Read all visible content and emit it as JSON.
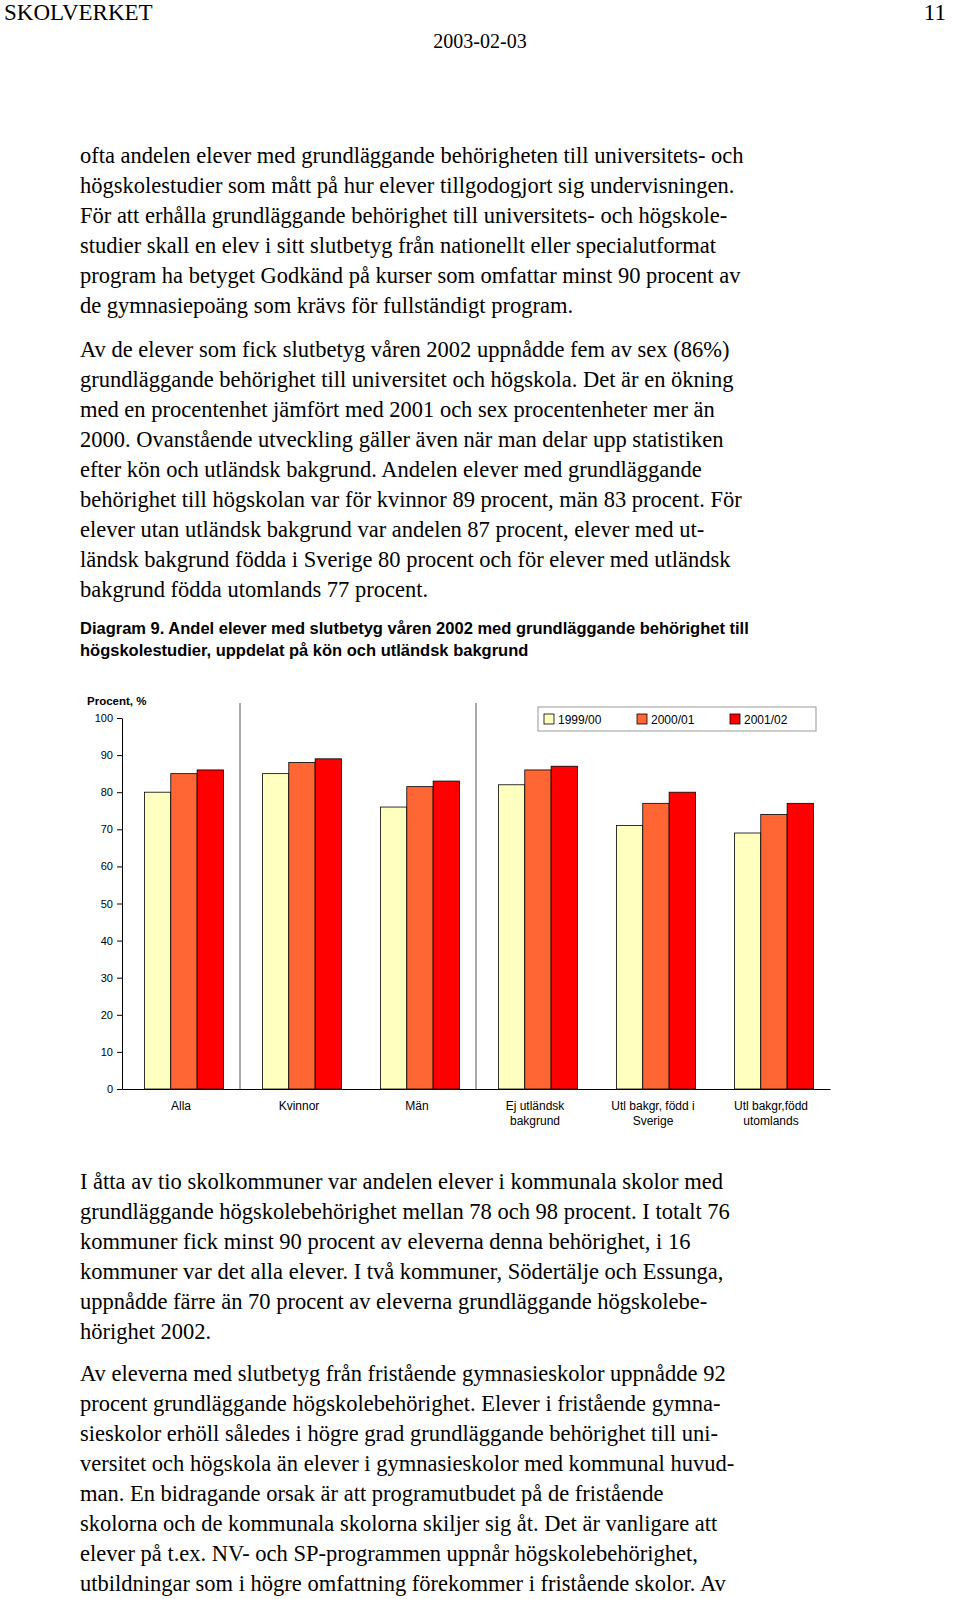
{
  "header": {
    "left": "SKOLVERKET",
    "right": "11",
    "date": "2003-02-03"
  },
  "body_top": [
    [
      "ofta andelen elever med grundläggande behörigheten till universitets- och",
      "högskolestudier som mått på hur elever tillgodogjort sig undervisningen.",
      "För att erhålla grundläggande behörighet till universitets- och högskole-",
      "studier skall en elev i sitt slutbetyg från nationellt eller specialutformat",
      "program ha betyget Godkänd på kurser som omfattar minst 90 procent av",
      "de gymnasiepoäng som krävs för fullständigt program."
    ],
    [
      "Av de elever som fick slutbetyg våren 2002 uppnådde fem av sex (86%)",
      "grundläggande behörighet till universitet och högskola. Det är en ökning",
      "med en procentenhet jämfört med 2001 och sex procentenheter mer än",
      "2000. Ovanstående utveckling gäller även när man delar upp statistiken",
      "efter kön och utländsk bakgrund. Andelen elever med grundläggande",
      "behörighet till högskolan var för kvinnor 89 procent, män 83 procent. För",
      "elever utan utländsk bakgrund var andelen 87 procent, elever med ut-",
      "ländsk bakgrund födda i Sverige 80 procent och för elever med utländsk",
      "bakgrund födda utomlands 77 procent."
    ]
  ],
  "chart_data": {
    "type": "bar",
    "title": "Diagram 9. Andel elever med slutbetyg våren 2002 med grundläggande behörighet till högskolestudier, uppdelat på kön och utländsk bakgrund",
    "y_label": "Procent, %",
    "categories": [
      "Alla",
      "Kvinnor",
      "Män",
      "Ej utländsk bakgrund",
      "Utl bakgr, född i Sverige",
      "Utl bakgr,född utomlands"
    ],
    "series": [
      {
        "name": "1999/00",
        "color": "#ffffc0",
        "values": [
          80,
          85,
          76,
          82,
          71,
          69
        ]
      },
      {
        "name": "2000/01",
        "color": "#ff6633",
        "values": [
          85,
          88,
          81.5,
          86,
          77,
          74
        ]
      },
      {
        "name": "2001/02",
        "color": "#ff0000",
        "values": [
          86,
          89,
          83,
          87,
          80,
          77
        ]
      }
    ],
    "ylim": [
      0,
      100
    ],
    "yticks": [
      0,
      10,
      20,
      30,
      40,
      50,
      60,
      70,
      80,
      90,
      100
    ],
    "grid": false,
    "legend": "top-right"
  },
  "body_bottom": [
    [
      "I åtta av tio skolkommuner var andelen elever i kommunala skolor med",
      "grundläggande högskolebehörighet mellan 78 och 98 procent. I totalt 76",
      "kommuner fick minst 90 procent av eleverna denna behörighet, i 16",
      "kommuner var det alla elever. I två kommuner, Södertälje och Essunga,",
      "uppnådde färre än 70 procent av eleverna grundläggande högskolebe-",
      "hörighet 2002."
    ],
    [
      "Av eleverna med slutbetyg från fristående gymnasieskolor uppnådde 92",
      "procent grundläggande högskolebehörighet. Elever i fristående gymna-",
      "sieskolor erhöll således i högre grad grundläggande behörighet till uni-",
      "versitet och högskola än elever i gymnasieskolor med kommunal huvud-",
      "man. En bidragande orsak är att programutbudet på de fristående",
      "skolorna och de kommunala skolorna skiljer sig åt. Det är vanligare att",
      "elever på t.ex. NV- och SP-programmen uppnår högskolebehörighet,",
      "utbildningar som i högre omfattning förekommer i fristående skolor. Av"
    ]
  ]
}
